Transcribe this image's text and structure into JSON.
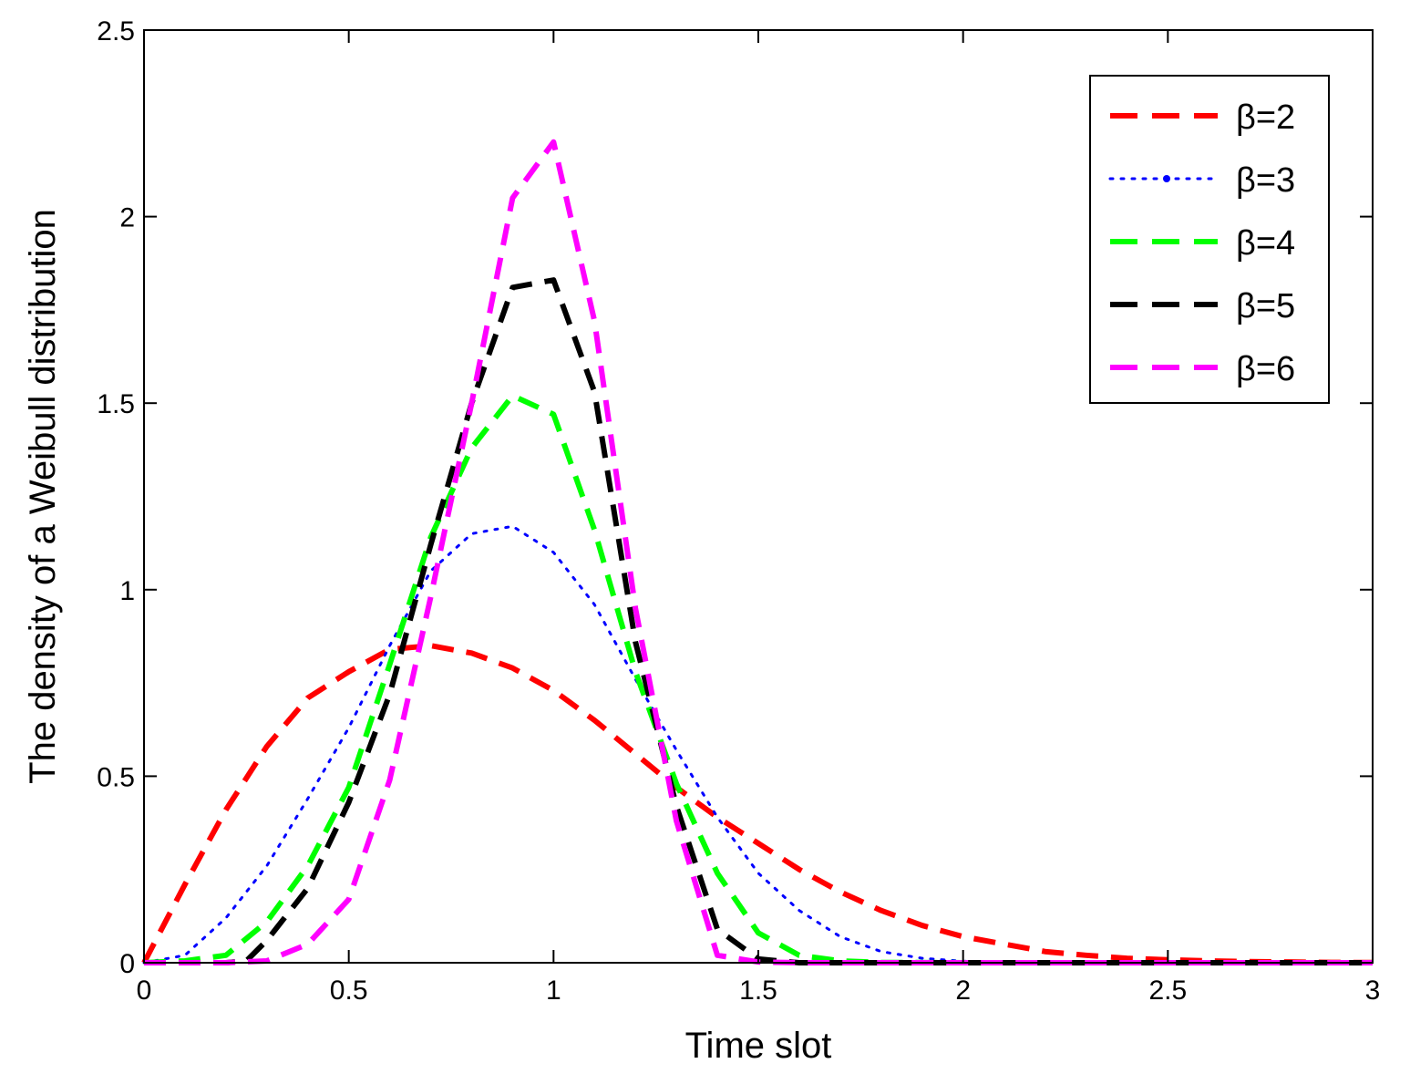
{
  "chart_data": {
    "type": "line",
    "title": "",
    "xlabel": "Time slot",
    "ylabel": "The density of a Weibull distribution",
    "xlim": [
      0,
      3
    ],
    "ylim": [
      0,
      2.5
    ],
    "xticks": [
      0,
      0.5,
      1,
      1.5,
      2,
      2.5,
      3
    ],
    "xtick_labels": [
      "0",
      "0.5",
      "1",
      "1.5",
      "2",
      "2.5",
      "3"
    ],
    "yticks": [
      0,
      0.5,
      1,
      1.5,
      2,
      2.5
    ],
    "ytick_labels": [
      "0",
      "0.5",
      "1",
      "1.5",
      "2",
      "2.5"
    ],
    "grid": false,
    "legend_position": "top-right",
    "series": [
      {
        "name": "β=2",
        "beta": 2,
        "color": "#ff0000",
        "style": "dashed",
        "x": [
          0,
          0.1,
          0.2,
          0.3,
          0.4,
          0.5,
          0.6,
          0.7,
          0.8,
          0.9,
          1.0,
          1.1,
          1.2,
          1.3,
          1.4,
          1.5,
          1.6,
          1.7,
          1.8,
          1.9,
          2.0,
          2.1,
          2.2,
          2.3,
          2.4,
          2.5,
          2.6,
          2.7,
          2.8,
          2.9,
          3.0
        ],
        "y": [
          0,
          0.21,
          0.41,
          0.58,
          0.71,
          0.78,
          0.84,
          0.85,
          0.83,
          0.79,
          0.73,
          0.65,
          0.56,
          0.47,
          0.39,
          0.32,
          0.25,
          0.19,
          0.14,
          0.1,
          0.07,
          0.05,
          0.03,
          0.02,
          0.012,
          0.008,
          0.005,
          0.003,
          0.002,
          0.001,
          0.0005
        ]
      },
      {
        "name": "β=3",
        "beta": 3,
        "color": "#0000ff",
        "style": "dotted",
        "x": [
          0,
          0.1,
          0.2,
          0.3,
          0.4,
          0.5,
          0.6,
          0.7,
          0.8,
          0.9,
          1.0,
          1.1,
          1.2,
          1.3,
          1.4,
          1.5,
          1.6,
          1.7,
          1.8,
          1.9,
          2.0,
          2.2,
          2.4,
          2.6,
          2.8,
          3.0
        ],
        "y": [
          0,
          0.02,
          0.12,
          0.26,
          0.44,
          0.63,
          0.85,
          1.05,
          1.15,
          1.17,
          1.1,
          0.96,
          0.76,
          0.57,
          0.39,
          0.24,
          0.14,
          0.07,
          0.03,
          0.012,
          0.004,
          0.001,
          0.0002,
          0,
          0,
          0
        ]
      },
      {
        "name": "β=4",
        "beta": 4,
        "color": "#00ff00",
        "style": "dashed",
        "x": [
          0,
          0.1,
          0.2,
          0.3,
          0.4,
          0.5,
          0.6,
          0.7,
          0.8,
          0.9,
          1.0,
          1.1,
          1.2,
          1.3,
          1.4,
          1.5,
          1.6,
          1.7,
          1.8,
          2.0,
          2.2,
          2.4,
          2.6,
          2.8,
          3.0
        ],
        "y": [
          0,
          0.005,
          0.02,
          0.11,
          0.26,
          0.47,
          0.8,
          1.14,
          1.38,
          1.52,
          1.47,
          1.16,
          0.78,
          0.48,
          0.24,
          0.08,
          0.02,
          0.005,
          0.001,
          0,
          0,
          0,
          0,
          0,
          0
        ]
      },
      {
        "name": "β=5",
        "beta": 5,
        "color": "#000000",
        "style": "dashed",
        "x": [
          0,
          0.1,
          0.2,
          0.25,
          0.3,
          0.4,
          0.5,
          0.6,
          0.7,
          0.8,
          0.9,
          1.0,
          1.1,
          1.2,
          1.3,
          1.4,
          1.5,
          1.6,
          1.8,
          2.0,
          2.2,
          2.4,
          2.6,
          2.8,
          3.0
        ],
        "y": [
          0,
          0,
          0,
          0.005,
          0.06,
          0.2,
          0.43,
          0.72,
          1.12,
          1.5,
          1.81,
          1.83,
          1.53,
          0.86,
          0.42,
          0.09,
          0.01,
          0,
          0,
          0,
          0,
          0,
          0,
          0,
          0
        ]
      },
      {
        "name": "β=6",
        "beta": 6,
        "color": "#ff00ff",
        "style": "dashed",
        "x": [
          0,
          0.1,
          0.2,
          0.3,
          0.4,
          0.5,
          0.6,
          0.7,
          0.8,
          0.9,
          1.0,
          1.1,
          1.2,
          1.3,
          1.4,
          1.5,
          1.6,
          1.8,
          2.0,
          2.2,
          2.4,
          2.6,
          2.8,
          3.0
        ],
        "y": [
          0,
          0,
          0,
          0.005,
          0.05,
          0.17,
          0.49,
          0.98,
          1.5,
          2.05,
          2.2,
          1.72,
          0.95,
          0.38,
          0.02,
          0.002,
          0,
          0,
          0,
          0,
          0,
          0,
          0,
          0
        ]
      }
    ]
  }
}
